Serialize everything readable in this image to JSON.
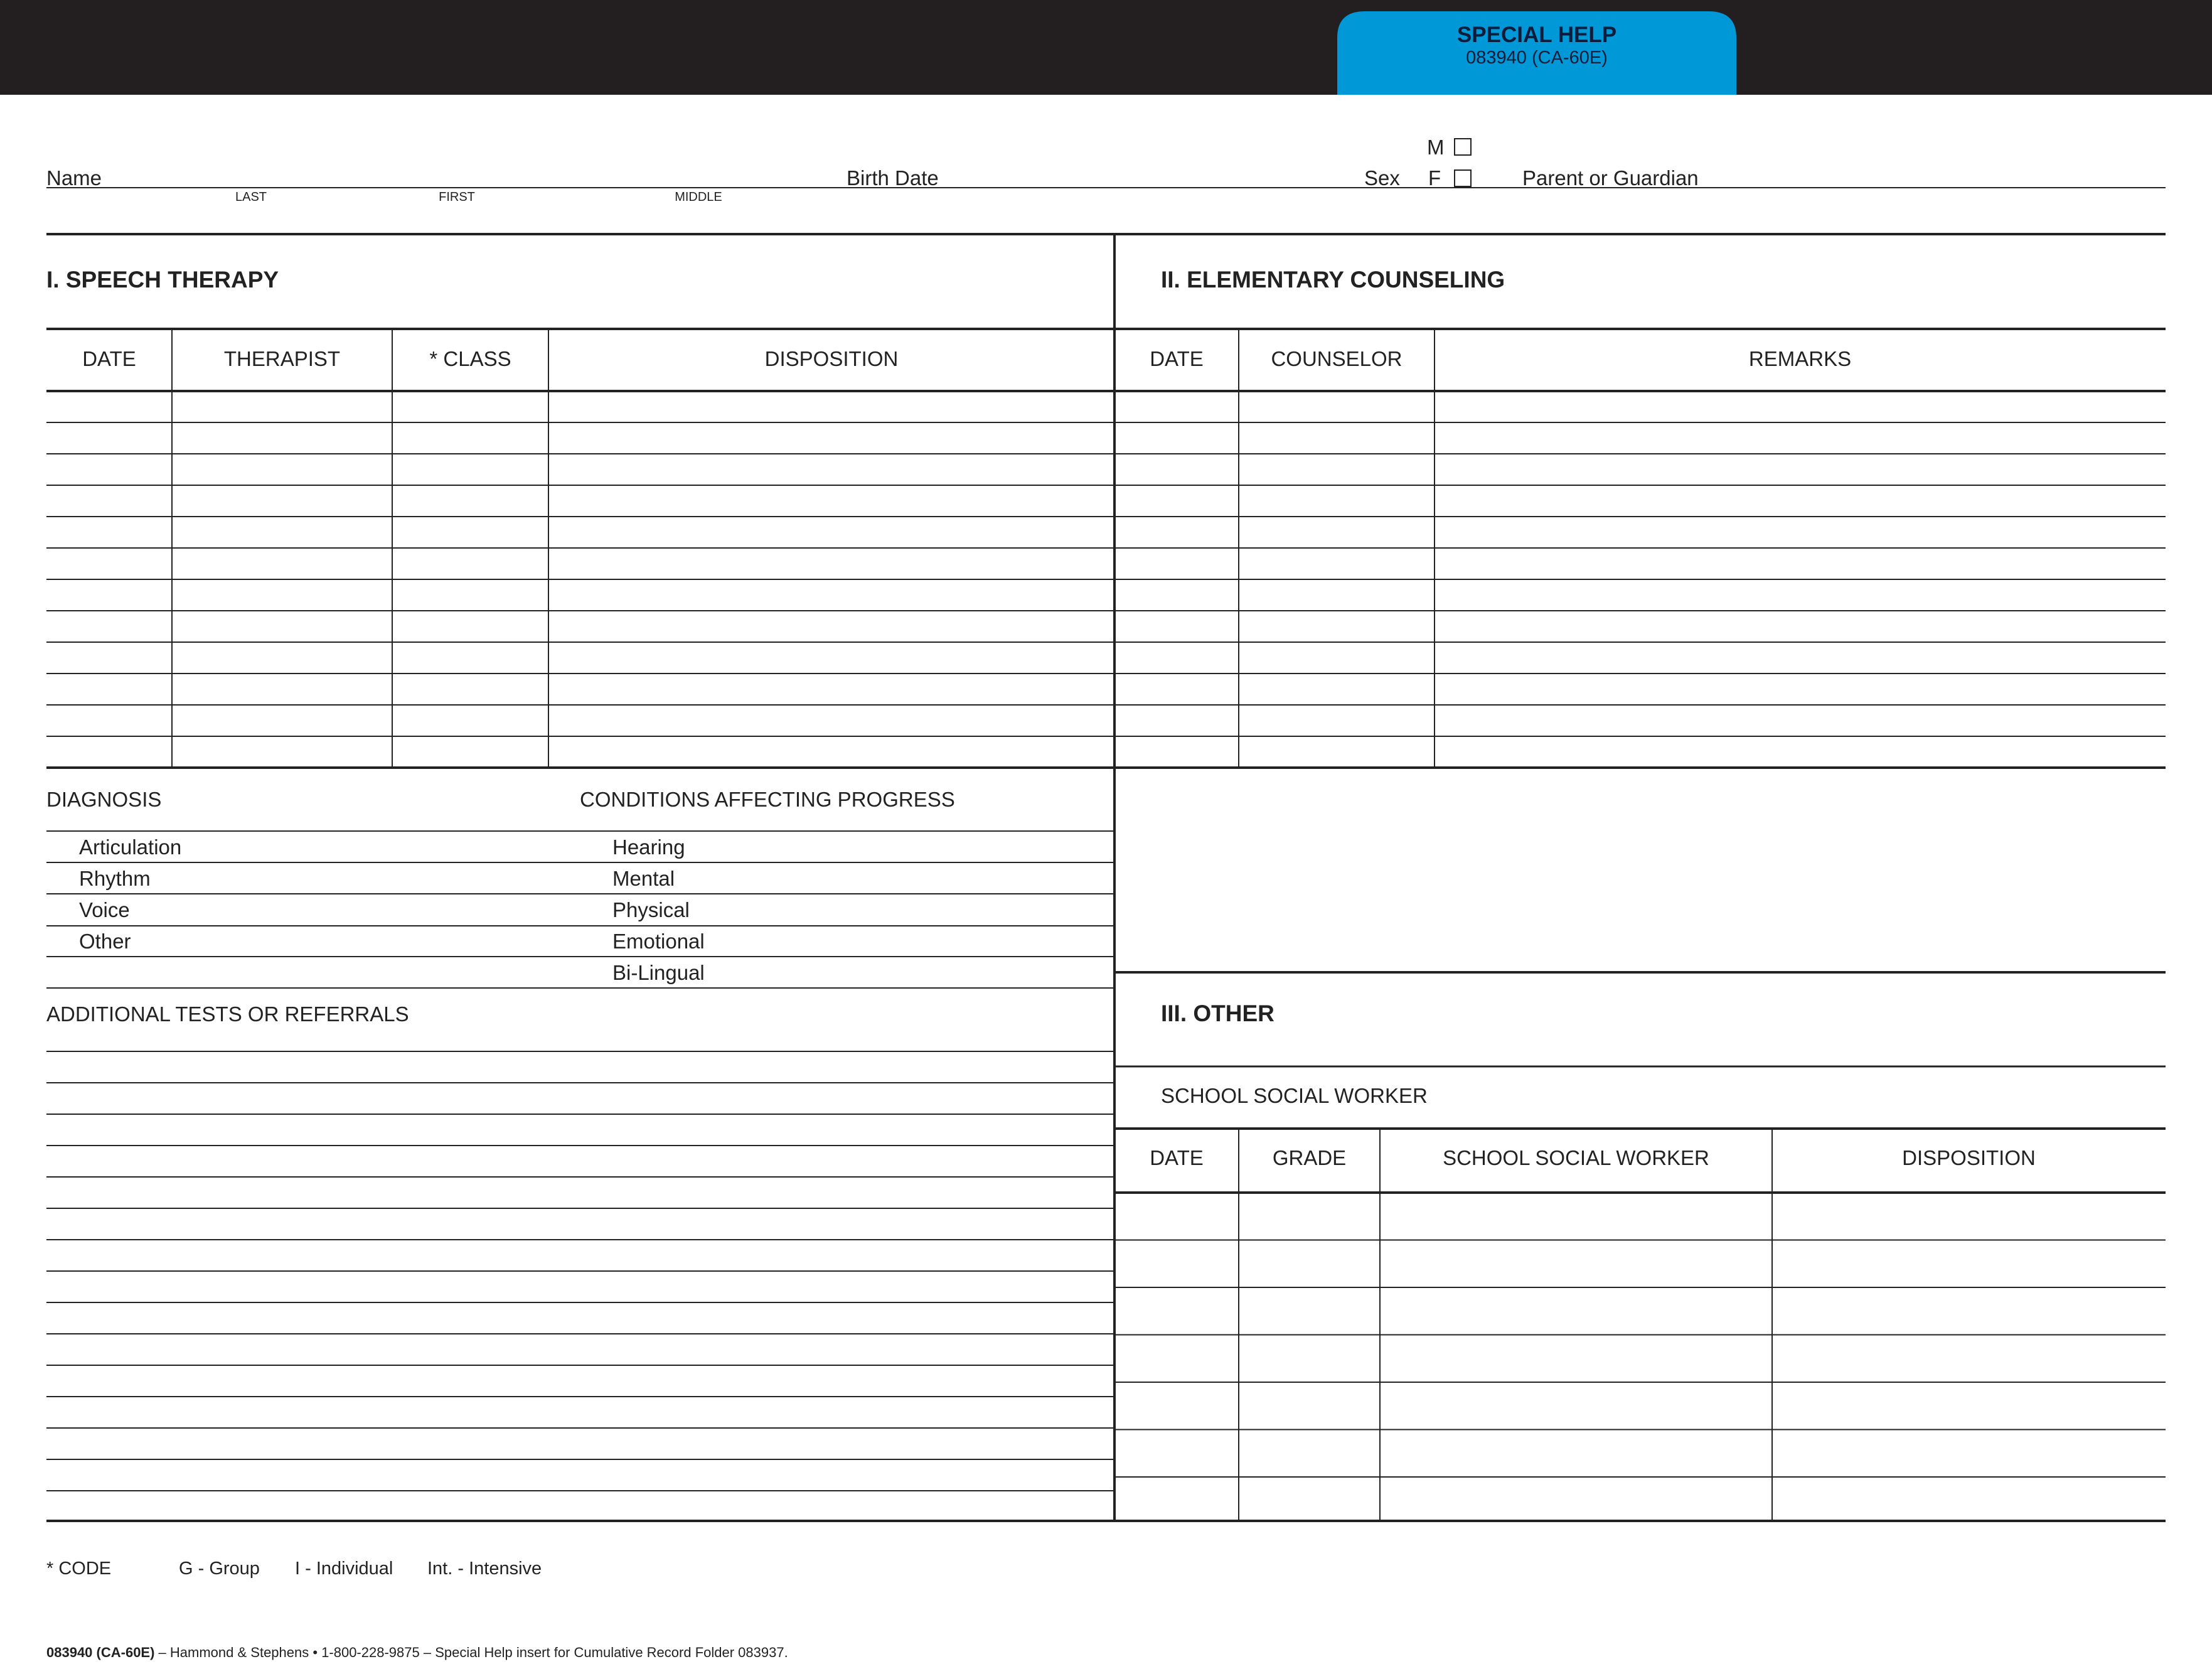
{
  "tab": {
    "title": "SPECIAL HELP",
    "subtitle": "083940 (CA-60E)",
    "color": "#0098d6",
    "band_color": "#231f20"
  },
  "student": {
    "name_label": "Name",
    "last": "LAST",
    "first": "FIRST",
    "middle": "MIDDLE",
    "birth_date_label": "Birth Date",
    "sex_label": "Sex",
    "male": "M",
    "female": "F",
    "parent_label": "Parent or Guardian"
  },
  "speech": {
    "title": "I. SPEECH THERAPY",
    "columns": [
      "DATE",
      "THERAPIST",
      "* CLASS",
      "DISPOSITION"
    ],
    "diagnosis_label": "DIAGNOSIS",
    "diagnosis_items": [
      "Articulation",
      "Rhythm",
      "Voice",
      "Other"
    ],
    "conditions_label": "CONDITIONS AFFECTING PROGRESS",
    "conditions_items": [
      "Hearing",
      "Mental",
      "Physical",
      "Emotional",
      "Bi-Lingual"
    ],
    "additional_label": "ADDITIONAL TESTS OR REFERRALS"
  },
  "counseling": {
    "title": "II. ELEMENTARY COUNSELING",
    "columns": [
      "DATE",
      "COUNSELOR",
      "REMARKS"
    ]
  },
  "other": {
    "title": "III. OTHER",
    "subtitle": "SCHOOL SOCIAL WORKER",
    "columns": [
      "DATE",
      "GRADE",
      "SCHOOL SOCIAL WORKER",
      "DISPOSITION"
    ]
  },
  "code": {
    "label": "* CODE",
    "items": [
      "G - Group",
      "I - Individual",
      "Int. - Intensive"
    ]
  },
  "footer": {
    "bold": "083940 (CA-60E)",
    "text": " – Hammond & Stephens • 1-800-228-9875 – Special Help insert for Cumulative Record Folder 083937."
  }
}
